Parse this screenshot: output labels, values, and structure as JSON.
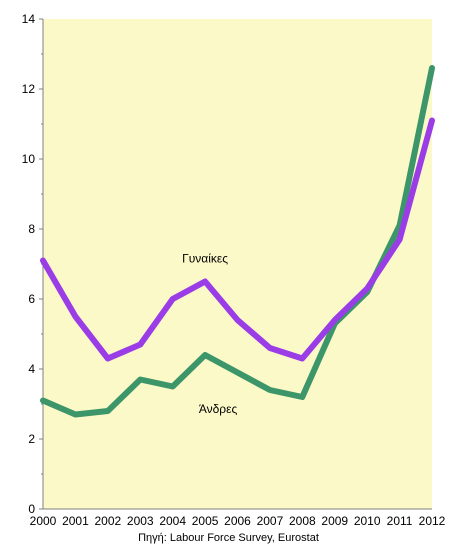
{
  "chart_data": {
    "type": "line",
    "title": "",
    "xlabel": "",
    "ylabel": "",
    "x": [
      2000,
      2001,
      2002,
      2003,
      2004,
      2005,
      2006,
      2007,
      2008,
      2009,
      2010,
      2011,
      2012
    ],
    "ylim": [
      0,
      14
    ],
    "yticks": [
      0,
      2,
      4,
      6,
      8,
      10,
      12,
      14
    ],
    "grid": false,
    "legend": "none",
    "background_color": "#fcf9c8",
    "series": [
      {
        "name": "Γυναίκες",
        "color": "#9b3de6",
        "values": [
          7.1,
          5.5,
          4.3,
          4.7,
          6.0,
          6.5,
          5.4,
          4.6,
          4.3,
          5.4,
          6.3,
          7.7,
          11.1
        ]
      },
      {
        "name": "Άνδρες",
        "color": "#3c9669",
        "values": [
          3.1,
          2.7,
          2.8,
          3.7,
          3.5,
          4.4,
          3.9,
          3.4,
          3.2,
          5.3,
          6.2,
          8.1,
          12.6
        ]
      }
    ]
  },
  "source_note": "Πηγή: Labour Force Survey, Eurostat"
}
